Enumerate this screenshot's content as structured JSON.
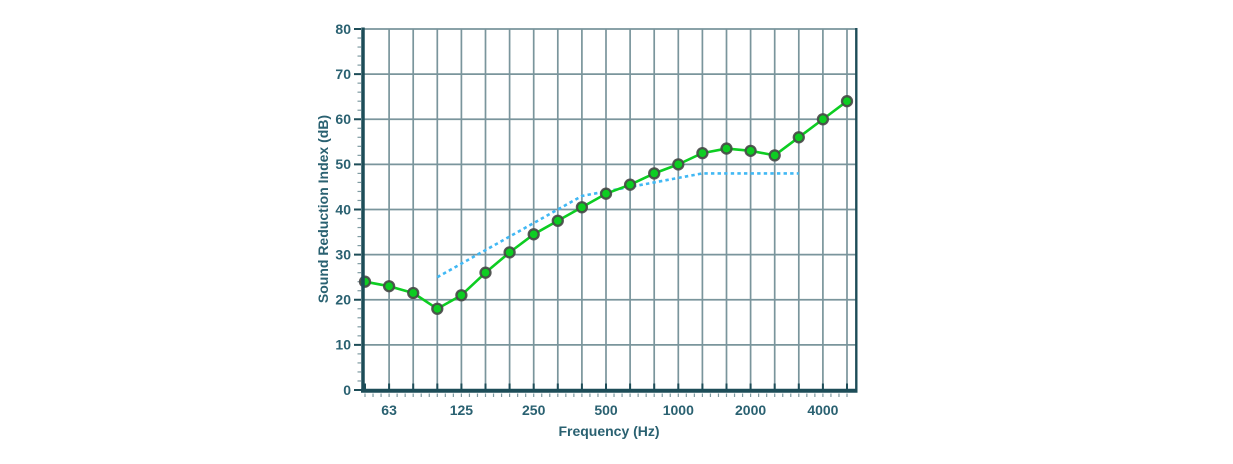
{
  "chart_data": {
    "type": "line",
    "title": "",
    "xlabel": "Frequency (Hz)",
    "ylabel": "Sound Reduction Index (dB)",
    "x_scale": "log-third-octave-bands",
    "x_bands": [
      50,
      63,
      80,
      100,
      125,
      160,
      200,
      250,
      315,
      400,
      500,
      630,
      800,
      1000,
      1250,
      1600,
      2000,
      2500,
      3150,
      4000,
      5000
    ],
    "x_ticks": [
      {
        "value": 63,
        "label": "63"
      },
      {
        "value": 125,
        "label": "125"
      },
      {
        "value": 250,
        "label": "250"
      },
      {
        "value": 500,
        "label": "500"
      },
      {
        "value": 1000,
        "label": "1000"
      },
      {
        "value": 2000,
        "label": "2000"
      },
      {
        "value": 4000,
        "label": "4000"
      }
    ],
    "ylim": [
      0,
      80
    ],
    "y_ticks": [
      {
        "value": 0,
        "label": "0"
      },
      {
        "value": 10,
        "label": "10"
      },
      {
        "value": 20,
        "label": "20"
      },
      {
        "value": 30,
        "label": "30"
      },
      {
        "value": 40,
        "label": "40"
      },
      {
        "value": 50,
        "label": "50"
      },
      {
        "value": 60,
        "label": "60"
      },
      {
        "value": 70,
        "label": "70"
      },
      {
        "value": 80,
        "label": "80"
      }
    ],
    "y_minor_step": 2,
    "x_minor_ticks_per_interval": 3,
    "grid": true,
    "legend": "none",
    "series": [
      {
        "name": "measured-sound-reduction-index",
        "style": "solid-with-markers",
        "color": "#0dcd22",
        "marker_fill": "#0dcd22",
        "marker_edge": "#474747",
        "x": [
          50,
          63,
          80,
          100,
          125,
          160,
          200,
          250,
          315,
          400,
          500,
          630,
          800,
          1000,
          1250,
          1600,
          2000,
          2500,
          3150,
          4000,
          5000
        ],
        "values": [
          24,
          23,
          21.5,
          18,
          21,
          26,
          30.5,
          34.5,
          37.5,
          40.5,
          43.5,
          45.5,
          48,
          50,
          52.5,
          53.5,
          53,
          52,
          56,
          60,
          64
        ]
      },
      {
        "name": "reference-curve",
        "style": "dashed",
        "color": "#41b8f4",
        "x": [
          100,
          125,
          160,
          200,
          250,
          315,
          400,
          500,
          630,
          800,
          1000,
          1250,
          1600,
          2000,
          2500,
          3150
        ],
        "values": [
          25,
          28,
          31,
          34,
          37,
          40,
          43,
          44,
          45,
          46,
          47,
          48,
          48,
          48,
          48,
          48
        ]
      }
    ],
    "colors": {
      "axis": "#1d4d58",
      "grid": "#7a959c",
      "minor_tick": "#7f9ba2",
      "label": "#2a6171",
      "background": "#ffffff"
    }
  }
}
